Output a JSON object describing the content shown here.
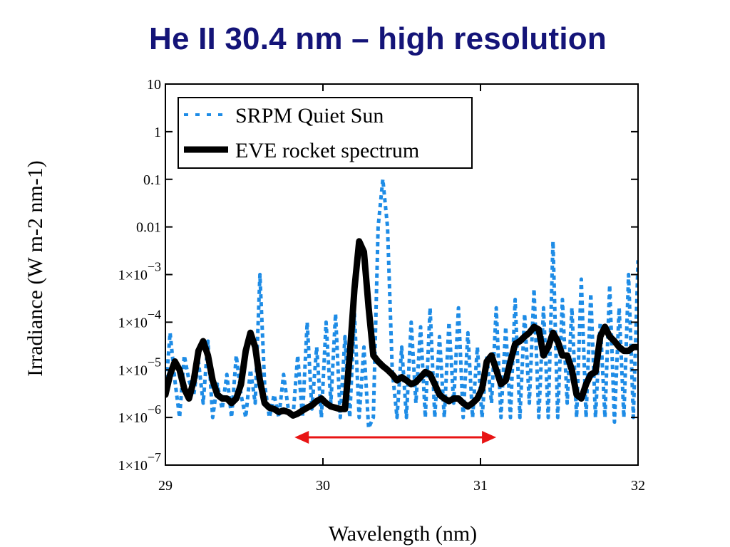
{
  "page": {
    "title": "He II 30.4 nm – high resolution"
  },
  "chart_data": {
    "type": "line",
    "title": "He II 30.4 nm – high resolution",
    "xlabel": "Wavelength (nm)",
    "ylabel": "Irradiance (W m-2 nm-1)",
    "xlim": [
      29,
      32
    ],
    "ylim": [
      1e-07,
      10
    ],
    "yscale": "log",
    "x_ticks": [
      29,
      30,
      31,
      32
    ],
    "x_tick_labels": [
      "29",
      "30",
      "31",
      "32"
    ],
    "y_ticks": [
      10,
      1,
      0.1,
      0.01,
      0.001,
      0.0001,
      1e-05,
      1e-06,
      1e-07
    ],
    "y_tick_labels": [
      {
        "text": "10",
        "exp": ""
      },
      {
        "text": "1",
        "exp": ""
      },
      {
        "text": "0.1",
        "exp": ""
      },
      {
        "text": "0.01",
        "exp": ""
      },
      {
        "text": "1×10",
        "exp": "−3"
      },
      {
        "text": "1×10",
        "exp": "−4"
      },
      {
        "text": "1×10",
        "exp": "−5"
      },
      {
        "text": "1×10",
        "exp": "−6"
      },
      {
        "text": "1×10",
        "exp": "−7"
      }
    ],
    "legend": {
      "position": "top-left",
      "entries": [
        "SRPM Quiet Sun",
        "EVE rocket spectrum"
      ]
    },
    "series": [
      {
        "name": "EVE rocket spectrum",
        "style": "solid-thick",
        "color": "#000000",
        "x": [
          29.0,
          29.03,
          29.06,
          29.09,
          29.12,
          29.15,
          29.18,
          29.21,
          29.24,
          29.27,
          29.3,
          29.33,
          29.36,
          29.39,
          29.42,
          29.45,
          29.48,
          29.51,
          29.54,
          29.57,
          29.6,
          29.63,
          29.66,
          29.69,
          29.72,
          29.75,
          29.78,
          29.81,
          29.84,
          29.87,
          29.9,
          29.93,
          29.96,
          29.99,
          30.02,
          30.05,
          30.08,
          30.11,
          30.14,
          30.17,
          30.2,
          30.23,
          30.26,
          30.29,
          30.32,
          30.35,
          30.38,
          30.41,
          30.44,
          30.47,
          30.5,
          30.53,
          30.56,
          30.59,
          30.62,
          30.65,
          30.68,
          30.71,
          30.74,
          30.77,
          30.8,
          30.83,
          30.86,
          30.89,
          30.92,
          30.95,
          30.98,
          31.01,
          31.04,
          31.07,
          31.1,
          31.13,
          31.16,
          31.19,
          31.22,
          31.25,
          31.28,
          31.31,
          31.34,
          31.37,
          31.4,
          31.43,
          31.46,
          31.49,
          31.52,
          31.55,
          31.58,
          31.61,
          31.64,
          31.67,
          31.7,
          31.73,
          31.76,
          31.79,
          31.82,
          31.85,
          31.88,
          31.91,
          31.94,
          31.97,
          32.0
        ],
        "values": [
          3e-06,
          8e-06,
          1.5e-05,
          1e-05,
          4e-06,
          2.5e-06,
          6e-06,
          2.5e-05,
          4e-05,
          2e-05,
          6e-06,
          3e-06,
          2.5e-06,
          2.5e-06,
          2e-06,
          2.5e-06,
          5e-06,
          2.5e-05,
          6e-05,
          3e-05,
          6e-06,
          2e-06,
          1.6e-06,
          1.5e-06,
          1.3e-06,
          1.4e-06,
          1.3e-06,
          1.1e-06,
          1.2e-06,
          1.4e-06,
          1.6e-06,
          1.8e-06,
          2.2e-06,
          2.5e-06,
          2e-06,
          1.7e-06,
          1.6e-06,
          1.5e-06,
          1.5e-06,
          2e-05,
          0.0005,
          0.005,
          0.003,
          0.0002,
          2e-05,
          1.5e-05,
          1.2e-05,
          1e-05,
          8e-06,
          6e-06,
          7e-06,
          6e-06,
          5e-06,
          5.5e-06,
          7e-06,
          9e-06,
          8e-06,
          5e-06,
          3e-06,
          2.5e-06,
          2.2e-06,
          2.5e-06,
          2.5e-06,
          2e-06,
          1.7e-06,
          2e-06,
          2.5e-06,
          4e-06,
          1.5e-05,
          2e-05,
          1e-05,
          5e-06,
          6e-06,
          1.5e-05,
          3.5e-05,
          4e-05,
          5e-05,
          6e-05,
          8e-05,
          7e-05,
          2e-05,
          3e-05,
          6e-05,
          4e-05,
          2e-05,
          2e-05,
          1e-05,
          3e-06,
          2.5e-06,
          5e-06,
          8e-06,
          9e-06,
          5e-05,
          8e-05,
          5e-05,
          4e-05,
          3e-05,
          2.5e-05,
          2.5e-05,
          3e-05,
          3e-05
        ]
      },
      {
        "name": "SRPM Quiet Sun",
        "style": "dotted",
        "color": "#1e8ce6",
        "x": [
          29.0,
          29.03,
          29.06,
          29.09,
          29.12,
          29.15,
          29.18,
          29.21,
          29.24,
          29.27,
          29.3,
          29.33,
          29.36,
          29.39,
          29.42,
          29.45,
          29.48,
          29.51,
          29.54,
          29.57,
          29.6,
          29.63,
          29.66,
          29.69,
          29.72,
          29.75,
          29.78,
          29.81,
          29.84,
          29.87,
          29.9,
          29.93,
          29.96,
          29.99,
          30.02,
          30.05,
          30.08,
          30.11,
          30.14,
          30.17,
          30.2,
          30.23,
          30.26,
          30.29,
          30.32,
          30.35,
          30.38,
          30.41,
          30.44,
          30.47,
          30.5,
          30.53,
          30.56,
          30.59,
          30.62,
          30.65,
          30.68,
          30.71,
          30.74,
          30.77,
          30.8,
          30.83,
          30.86,
          30.89,
          30.92,
          30.95,
          30.98,
          31.01,
          31.04,
          31.07,
          31.1,
          31.13,
          31.16,
          31.19,
          31.22,
          31.25,
          31.28,
          31.31,
          31.34,
          31.37,
          31.4,
          31.43,
          31.46,
          31.49,
          31.52,
          31.55,
          31.58,
          31.61,
          31.64,
          31.67,
          31.7,
          31.73,
          31.76,
          31.79,
          31.82,
          31.85,
          31.88,
          31.91,
          31.94,
          31.97,
          32.0
        ],
        "values": [
          3e-06,
          6e-05,
          6e-06,
          1e-06,
          2e-05,
          6e-06,
          3e-06,
          1.5e-05,
          2e-06,
          4e-05,
          1e-06,
          5e-06,
          1.5e-06,
          8e-06,
          1e-06,
          2e-05,
          3e-06,
          1e-06,
          1e-05,
          2e-06,
          0.001,
          5e-06,
          1e-06,
          3e-06,
          1e-06,
          8e-06,
          1.5e-06,
          1e-06,
          2e-05,
          1e-06,
          0.0001,
          1.5e-06,
          3e-05,
          1e-06,
          0.0001,
          2e-06,
          0.00015,
          1e-06,
          5e-05,
          1e-06,
          0.00015,
          1e-06,
          3e-05,
          6e-07,
          1e-06,
          0.01,
          0.1,
          0.01,
          1e-05,
          1e-06,
          3e-05,
          1e-06,
          0.0001,
          2e-06,
          8e-05,
          1e-06,
          0.0002,
          1e-06,
          5e-05,
          1e-06,
          0.0001,
          2e-06,
          0.0002,
          1e-06,
          6e-05,
          1e-06,
          3e-05,
          1e-06,
          2e-05,
          2e-06,
          0.0002,
          1e-06,
          8e-05,
          1e-06,
          0.0003,
          1e-06,
          0.00015,
          2e-06,
          0.0005,
          1e-06,
          0.0002,
          1e-06,
          0.005,
          1e-06,
          0.0003,
          2e-06,
          0.0002,
          1e-06,
          0.0008,
          1e-06,
          0.0004,
          1e-06,
          0.0001,
          1e-06,
          0.0006,
          8e-07,
          0.0002,
          1e-06,
          0.001,
          1e-06,
          0.002
        ]
      }
    ],
    "annotations": [
      {
        "type": "double-arrow",
        "from_x": 29.82,
        "to_x": 31.1,
        "y": 3.5e-07,
        "color": "#e81414"
      }
    ]
  }
}
